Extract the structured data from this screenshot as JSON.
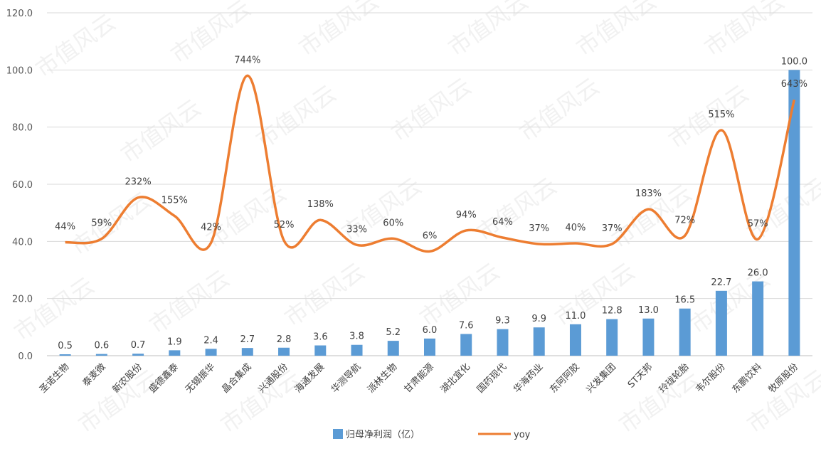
{
  "chart_data": {
    "type": "bar",
    "categories": [
      "圣诺生物",
      "泰麦微",
      "新农股份",
      "盛德鑫泰",
      "无锡振华",
      "晶合集成",
      "兴通股份",
      "海通发展",
      "华测导航",
      "派林生物",
      "甘肃能源",
      "湖北宜化",
      "国药现代",
      "华海药业",
      "东阿阿胶",
      "兴发集团",
      "ST天邦",
      "玲珑轮胎",
      "韦尔股份",
      "东鹏饮料",
      "牧原股份"
    ],
    "series": [
      {
        "name": "归母净利润（亿）",
        "type": "bar",
        "color": "#5b9bd5",
        "values": [
          0.5,
          0.6,
          0.7,
          1.9,
          2.4,
          2.7,
          2.8,
          3.6,
          3.8,
          5.2,
          6.0,
          7.6,
          9.3,
          9.9,
          11.0,
          12.8,
          13.0,
          16.5,
          22.7,
          26.0,
          100.0
        ],
        "value_labels": [
          "0.5",
          "0.6",
          "0.7",
          "1.9",
          "2.4",
          "2.7",
          "2.8",
          "3.6",
          "3.8",
          "5.2",
          "6.0",
          "7.6",
          "9.3",
          "9.9",
          "11.0",
          "12.8",
          "13.0",
          "16.5",
          "22.7",
          "26.0",
          "100.0"
        ]
      },
      {
        "name": "yoy",
        "type": "line",
        "smooth": true,
        "color": "#ed7d31",
        "values": [
          44,
          59,
          232,
          155,
          42,
          744,
          52,
          138,
          33,
          60,
          6,
          94,
          64,
          37,
          40,
          37,
          183,
          72,
          515,
          57,
          643
        ],
        "value_labels": [
          "44%",
          "59%",
          "232%",
          "155%",
          "42%",
          "744%",
          "52%",
          "138%",
          "33%",
          "60%",
          "6%",
          "94%",
          "64%",
          "37%",
          "40%",
          "37%",
          "183%",
          "72%",
          "515%",
          "57%",
          "643%"
        ]
      }
    ],
    "y_axis": {
      "ylim": [
        0,
        120
      ],
      "ticks": [
        "0.0",
        "20.0",
        "40.0",
        "60.0",
        "80.0",
        "100.0",
        "120.0"
      ]
    },
    "grid": true,
    "legend": "bottom",
    "watermark": "市值风云"
  }
}
